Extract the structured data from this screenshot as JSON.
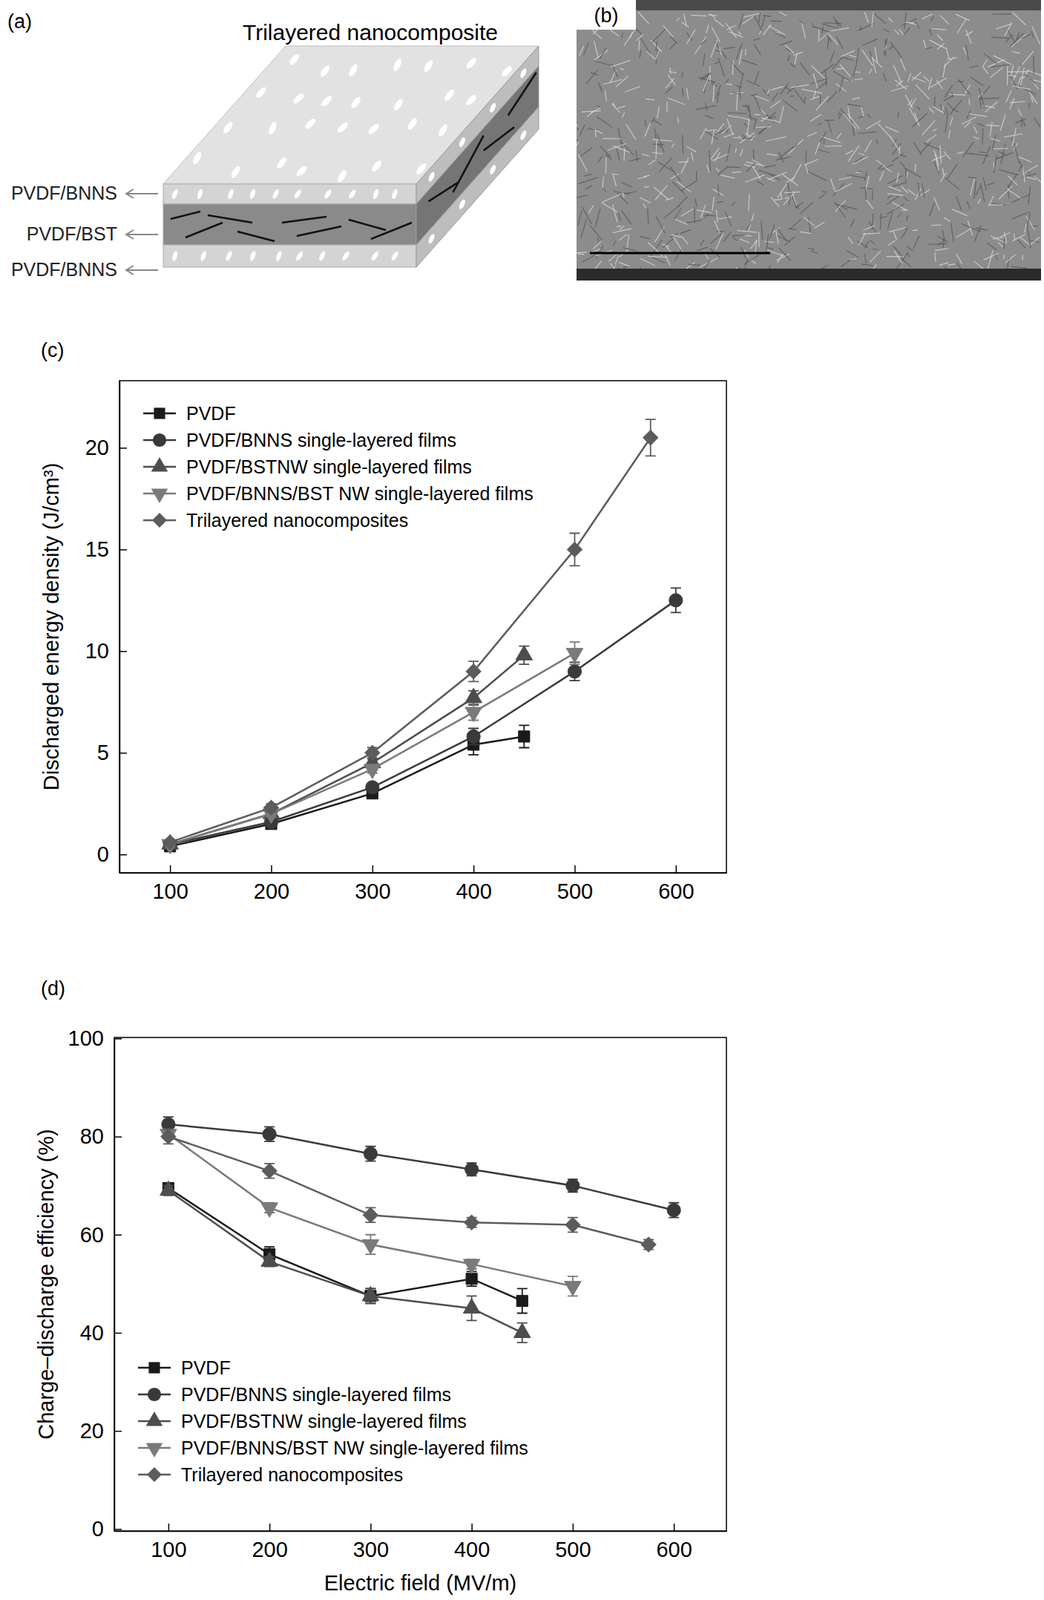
{
  "diagram": {
    "label": "(a)",
    "title": "Trilayered nanocomposite",
    "layers": [
      "PVDF/BNNS",
      "PVDF/BST",
      "PVDF/BNNS"
    ]
  },
  "image": {
    "label": "(b)"
  },
  "chart_data": [
    {
      "type": "line",
      "annotations": [
        "(c)"
      ],
      "ylabel": "Discharged energy density (J/cm³)",
      "xlim": [
        50,
        650
      ],
      "xticks": [
        100,
        200,
        300,
        400,
        500,
        600
      ],
      "ylim": [
        -0.9,
        23.3
      ],
      "yticks": [
        0,
        5,
        10,
        15,
        20
      ],
      "legend": "upper left",
      "series": [
        {
          "name": "PVDF",
          "color": "#1a1a1a",
          "marker": "square",
          "x": [
            100,
            200,
            300,
            400,
            450
          ],
          "values": [
            0.4,
            1.5,
            3.0,
            5.4,
            5.8
          ],
          "errors": [
            0.1,
            0.15,
            0.2,
            0.5,
            0.55
          ]
        },
        {
          "name": "PVDF/BNNS single-layered films",
          "color": "#3a3a3a",
          "marker": "circle",
          "x": [
            100,
            200,
            300,
            400,
            500,
            600
          ],
          "values": [
            0.5,
            1.6,
            3.3,
            5.8,
            9.0,
            12.5
          ],
          "errors": [
            0.1,
            0.15,
            0.2,
            0.4,
            0.45,
            0.6
          ]
        },
        {
          "name": "PVDF/BSTNW single-layered films",
          "color": "#4d4d4d",
          "marker": "triangle",
          "x": [
            100,
            200,
            300,
            400,
            450
          ],
          "values": [
            0.5,
            2.0,
            4.5,
            7.7,
            9.8
          ],
          "errors": [
            0.1,
            0.15,
            0.2,
            0.35,
            0.45
          ]
        },
        {
          "name": "PVDF/BNNS/BST NW single-layered films",
          "color": "#7a7a7a",
          "marker": "triangle-down",
          "x": [
            100,
            200,
            300,
            400,
            500
          ],
          "values": [
            0.5,
            2.0,
            4.2,
            7.0,
            9.9
          ],
          "errors": [
            0.1,
            0.15,
            0.2,
            0.4,
            0.55
          ]
        },
        {
          "name": "Trilayered nanocomposites",
          "color": "#5c5c5c",
          "marker": "diamond",
          "x": [
            100,
            200,
            300,
            400,
            500,
            575
          ],
          "values": [
            0.6,
            2.3,
            5.0,
            9.0,
            15.0,
            20.5
          ],
          "errors": [
            0.1,
            0.2,
            0.25,
            0.5,
            0.8,
            0.9
          ]
        }
      ]
    },
    {
      "type": "line",
      "annotations": [
        "(d)"
      ],
      "xlabel": "Electric field (MV/m)",
      "ylabel": "Charge–discharge efficiency (%)",
      "xlim": [
        46.5,
        652
      ],
      "xticks": [
        100,
        200,
        300,
        400,
        500,
        600
      ],
      "ylim": [
        -0.4,
        100.2
      ],
      "yticks": [
        0,
        20,
        40,
        60,
        80,
        100
      ],
      "legend": "lower left",
      "series": [
        {
          "name": "PVDF",
          "color": "#1a1a1a",
          "marker": "square",
          "x": [
            100,
            200,
            300,
            400,
            450
          ],
          "values": [
            69.5,
            56,
            47.5,
            51,
            46.5
          ],
          "errors": [
            1,
            1.5,
            1.5,
            1.5,
            2.5
          ]
        },
        {
          "name": "PVDF/BNNS single-layered films",
          "color": "#3a3a3a",
          "marker": "circle",
          "x": [
            100,
            200,
            300,
            400,
            500,
            600
          ],
          "values": [
            82.5,
            80.5,
            76.5,
            73.3,
            70,
            65
          ],
          "errors": [
            1.5,
            1.5,
            1.5,
            1.3,
            1.3,
            1.5
          ]
        },
        {
          "name": "PVDF/BSTNW single-layered films",
          "color": "#4d4d4d",
          "marker": "triangle",
          "x": [
            100,
            200,
            300,
            400,
            450
          ],
          "values": [
            69,
            54.5,
            47.5,
            45,
            40
          ],
          "errors": [
            1,
            1,
            1.5,
            2.5,
            2
          ]
        },
        {
          "name": "PVDF/BNNS/BST NW single-layered films",
          "color": "#7a7a7a",
          "marker": "triangle-down",
          "x": [
            100,
            200,
            300,
            400,
            500
          ],
          "values": [
            80.5,
            65.5,
            58,
            54,
            49.5
          ],
          "errors": [
            1,
            1,
            2,
            1,
            2
          ]
        },
        {
          "name": "Trilayered nanocomposites",
          "color": "#5c5c5c",
          "marker": "diamond",
          "x": [
            100,
            200,
            300,
            400,
            500,
            575
          ],
          "values": [
            80,
            73,
            64,
            62.5,
            62,
            58
          ],
          "errors": [
            1.5,
            1.5,
            1.5,
            1,
            1.5,
            1
          ]
        }
      ]
    }
  ]
}
